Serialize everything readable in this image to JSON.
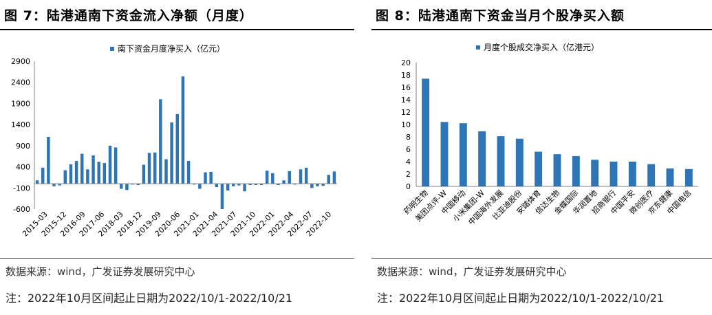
{
  "left": {
    "figure_title": "图 7：陆港通南下资金流入净额（月度）",
    "source": "数据来源：wind，广发证券发展研究中心",
    "note": "注：2022年10月区间起止日期为2022/10/1-2022/10/21"
  },
  "right": {
    "figure_title": "图 8：陆港通南下资金当月个股净买入额",
    "source": "数据来源：wind，广发证券发展研究中心",
    "note": "注：2022年10月区间起止日期为2022/10/1-2022/10/21"
  },
  "colors": {
    "bar": "#2e75b6"
  },
  "chart_data": [
    {
      "type": "bar",
      "legend": "南下资金月度净买入（亿元）",
      "legend_position": "top-center",
      "grid": false,
      "ylim": [
        -600,
        2900
      ],
      "yticks": [
        -600,
        -100,
        400,
        900,
        1400,
        1900,
        2400,
        2900
      ],
      "x_tick_labels": [
        "2015-03",
        "2015-12",
        "2016-09",
        "2017-06",
        "2018-03",
        "2018-12",
        "2019-09",
        "2020-06",
        "2021-01",
        "2021-04",
        "2021-07",
        "2021-10",
        "2022-01",
        "2022-04",
        "2022-07",
        "2022-10"
      ],
      "series": [
        {
          "name": "南下资金月度净买入（亿元）",
          "values": [
            80,
            380,
            1110,
            -60,
            -40,
            320,
            460,
            540,
            710,
            340,
            670,
            520,
            490,
            900,
            860,
            -120,
            -150,
            -20,
            -30,
            450,
            730,
            740,
            2000,
            580,
            1450,
            1650,
            2540,
            540,
            -20,
            -120,
            270,
            280,
            -80,
            -600,
            -160,
            -60,
            -40,
            -180,
            -30,
            -30,
            -30,
            310,
            250,
            -30,
            80,
            300,
            -20,
            340,
            380,
            -100,
            -60,
            -50,
            210,
            290
          ]
        }
      ]
    },
    {
      "type": "bar",
      "legend": "月度个股成交净买入（亿港元）",
      "legend_position": "top-center",
      "grid": false,
      "ylim": [
        0,
        20
      ],
      "yticks": [
        0,
        2,
        4,
        6,
        8,
        10,
        12,
        14,
        16,
        18,
        20
      ],
      "categories": [
        "药明生物",
        "美团点评-W",
        "中国移动",
        "小米集团-W",
        "中国海外发展",
        "比亚迪股份",
        "安踏体育",
        "信达生物",
        "金蝶国际",
        "华润置地",
        "招商银行",
        "中国平安",
        "微创医疗",
        "京东健康",
        "中国电信"
      ],
      "series": [
        {
          "name": "月度个股成交净买入（亿港元）",
          "values": [
            17.4,
            10.4,
            10.2,
            8.9,
            8.1,
            7.7,
            5.6,
            5.2,
            4.9,
            4.3,
            4.0,
            4.0,
            3.6,
            2.9,
            2.8
          ]
        }
      ]
    }
  ]
}
